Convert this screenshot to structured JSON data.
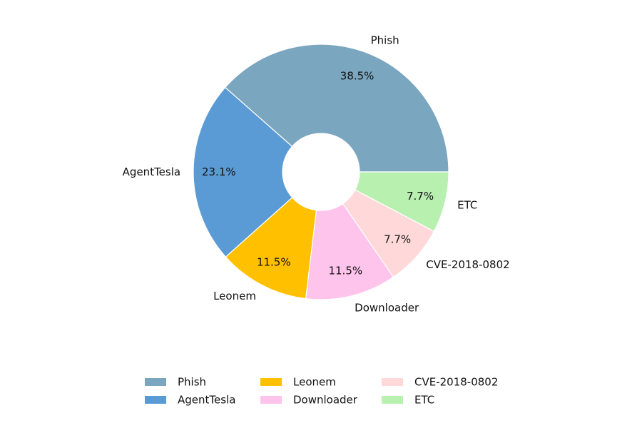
{
  "chart_data": {
    "type": "pie",
    "categories": [
      "Phish",
      "AgentTesla",
      "Leonem",
      "Downloader",
      "CVE-2018-0802",
      "ETC"
    ],
    "values": [
      38.5,
      23.1,
      11.5,
      11.5,
      7.7,
      7.7
    ],
    "value_labels": [
      "38.5%",
      "23.1%",
      "11.5%",
      "11.5%",
      "7.7%",
      "7.7%"
    ],
    "colors": [
      "#7ba6c0",
      "#5b9bd5",
      "#ffc000",
      "#ffc4ec",
      "#ffd9d9",
      "#b8f0b0"
    ],
    "legend": "lower center"
  }
}
